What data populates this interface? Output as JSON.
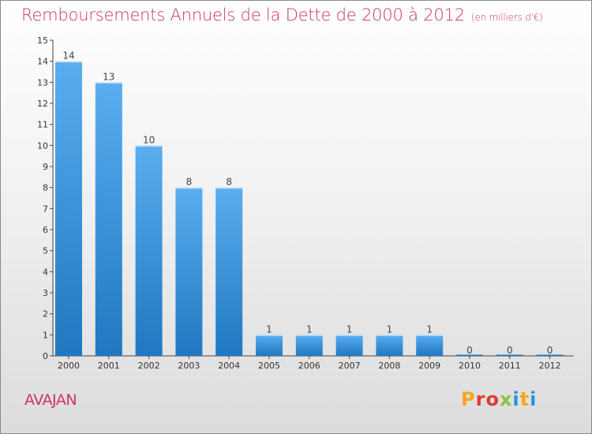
{
  "header": {
    "title": "Remboursements Annuels de la Dette de 2000 à 2012",
    "unit": "(en milliers d'€)"
  },
  "footer": {
    "commune": "AVAJAN",
    "logo_text": "Proxiti"
  },
  "colors": {
    "title": "#cc3366",
    "bar_top": "#5aaef0",
    "bar_bottom": "#1f78c0",
    "logo_letters": [
      "#f5a623",
      "#e03c31",
      "#e03c31",
      "#8fc23f",
      "#2b8fd8",
      "#f5a623",
      "#2b8fd8"
    ]
  },
  "chart_data": {
    "type": "bar",
    "categories": [
      "2000",
      "2001",
      "2002",
      "2003",
      "2004",
      "2005",
      "2006",
      "2007",
      "2008",
      "2009",
      "2010",
      "2011",
      "2012"
    ],
    "values": [
      14,
      13,
      10,
      8,
      8,
      1,
      1,
      1,
      1,
      1,
      0,
      0,
      0
    ],
    "ylim": [
      0,
      15
    ],
    "yticks": [
      0,
      1,
      2,
      3,
      4,
      5,
      6,
      7,
      8,
      9,
      10,
      11,
      12,
      13,
      14,
      15
    ],
    "grid": false
  }
}
